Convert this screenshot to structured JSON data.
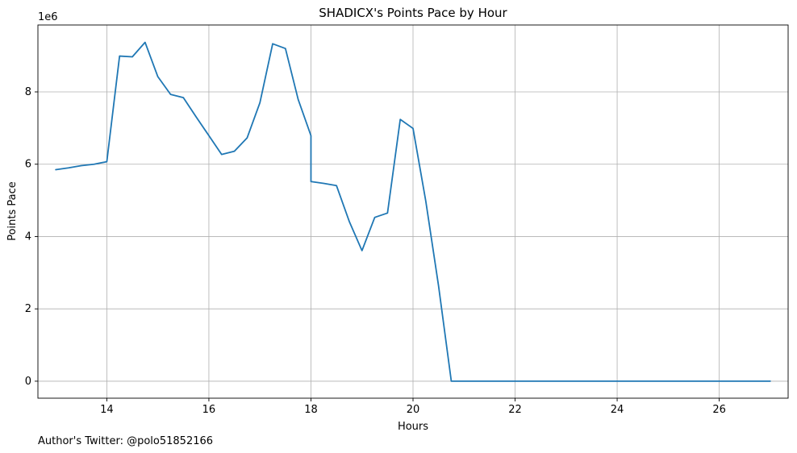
{
  "chart_data": {
    "type": "line",
    "title": "SHADICX's Points Pace by Hour",
    "xlabel": "Hours",
    "ylabel": "Points Pace",
    "offset_text": "1e6",
    "xlim": [
      12.65,
      27.35
    ],
    "ylim": [
      -0.47,
      9.85
    ],
    "xticks": [
      14,
      16,
      18,
      20,
      22,
      24,
      26
    ],
    "yticks": [
      0,
      2,
      4,
      6,
      8
    ],
    "grid": true,
    "series": [
      {
        "color": "#1f77b4",
        "x": [
          13,
          13.25,
          13.5,
          13.75,
          14,
          14.25,
          14.5,
          14.75,
          15,
          15.25,
          15.5,
          15.75,
          16,
          16.25,
          16.5,
          16.75,
          17,
          17.25,
          17.5,
          17.75,
          18,
          18,
          18.25,
          18.5,
          18.75,
          19,
          19.25,
          19.5,
          19.75,
          20,
          20.25,
          20.5,
          20.75,
          21,
          21.25,
          21.5,
          21.75,
          22,
          22.25,
          22.5,
          22.75,
          23,
          23.25,
          23.5,
          23.75,
          24,
          24.25,
          24.5,
          24.75,
          25,
          25.25,
          25.5,
          25.75,
          26,
          26.25,
          26.5,
          26.75,
          27
        ],
        "y": [
          5.85,
          5.9,
          5.96,
          6.0,
          6.07,
          8.99,
          8.97,
          9.37,
          8.42,
          7.93,
          7.84,
          7.31,
          6.79,
          6.27,
          6.36,
          6.73,
          7.7,
          9.33,
          9.2,
          7.79,
          6.79,
          5.52,
          5.47,
          5.41,
          4.42,
          3.61,
          4.53,
          4.65,
          7.24,
          6.99,
          4.98,
          2.64,
          0.0,
          0.0,
          0.0,
          0.0,
          0.0,
          0.0,
          0.0,
          0.0,
          0.0,
          0.0,
          0.0,
          0.0,
          0.0,
          0.0,
          0.0,
          0.0,
          0.0,
          0.0,
          0.0,
          0.0,
          0.0,
          0.0,
          0.0,
          0.0,
          0.0,
          0.0
        ]
      }
    ]
  },
  "footer_text": "Author's Twitter: @polo51852166"
}
